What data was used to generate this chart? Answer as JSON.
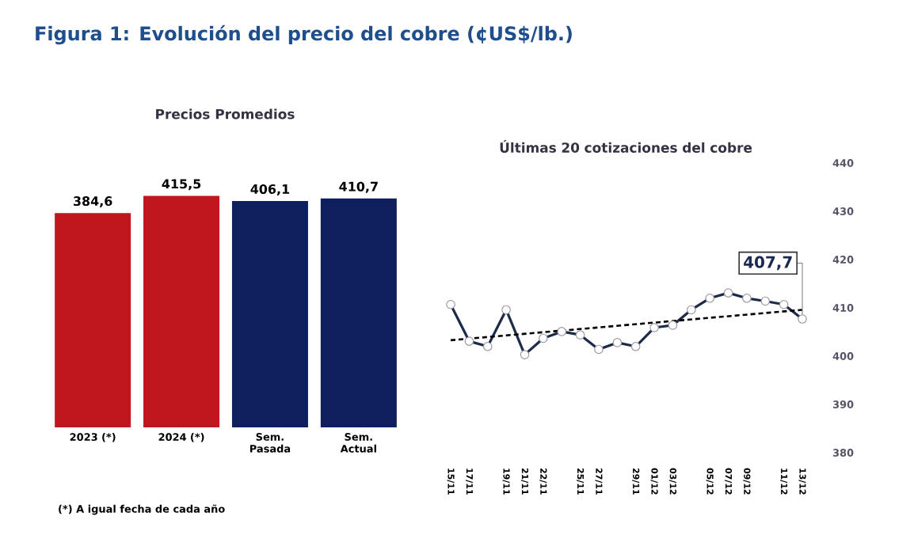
{
  "chart_data": [
    {
      "type": "bar",
      "title": "Figura 1: Evolución del precio del cobre (¢US$/lb.)",
      "subtitle": "Precios Promedios",
      "categories": [
        "2023 (*)",
        "2024 (*)",
        "Sem. Pasada",
        "Sem. Actual"
      ],
      "values": [
        384.6,
        415.5,
        406.1,
        410.7
      ],
      "value_labels": [
        "384,6",
        "415,5",
        "406,1",
        "410,7"
      ],
      "colors": [
        "#c0161d",
        "#c0161d",
        "#0d1f5c",
        "#0d1f5c"
      ],
      "tick_labels": "x",
      "annotations": [
        "(*) A igual fecha de cada año"
      ]
    },
    {
      "type": "line",
      "title": "Últimas 20 cotizaciones del cobre",
      "categories": [
        "15/11",
        "17/11",
        null,
        "19/11",
        "21/11",
        "22/11",
        null,
        "25/11",
        "27/11",
        null,
        "29/11",
        "01/12",
        "03/12",
        null,
        "05/12",
        "07/12",
        "09/12",
        null,
        "11/12",
        "13/12"
      ],
      "ylim": [
        380,
        440
      ],
      "yticks": [
        380,
        390,
        400,
        410,
        420,
        430,
        440
      ],
      "marker": "circle",
      "series": [
        {
          "color": "#1c2b4a",
          "values": [
            410.7,
            403.1,
            402.0,
            409.6,
            400.3,
            403.7,
            405.1,
            404.4,
            401.4,
            402.8,
            402.0,
            405.9,
            406.4,
            409.6,
            412.0,
            413.1,
            412.0,
            411.4,
            410.7,
            407.7
          ]
        },
        {
          "type": "line",
          "color": "#000000",
          "marker": "none",
          "line_style": "dashed",
          "values": [
            403.3,
            null,
            null,
            null,
            null,
            null,
            null,
            null,
            null,
            null,
            null,
            null,
            null,
            null,
            null,
            null,
            null,
            null,
            null,
            409.6
          ]
        }
      ],
      "annotations": [
        {
          "text": "407,7",
          "x": "13/12",
          "y": 407.7
        }
      ]
    }
  ]
}
